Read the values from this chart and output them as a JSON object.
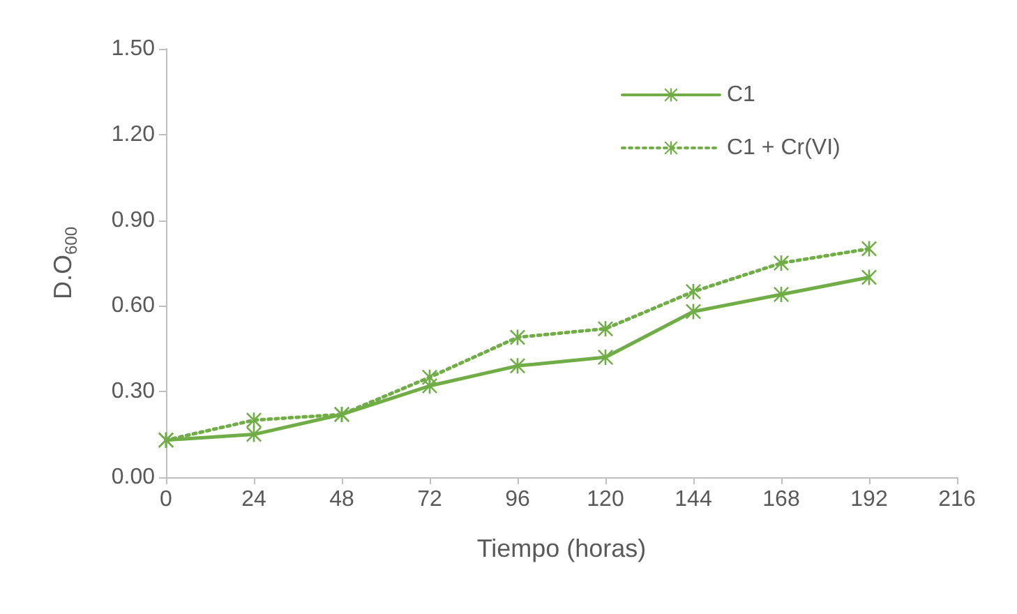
{
  "chart_data": {
    "type": "line",
    "xlabel": "Tiempo (horas)",
    "ylabel": "D.O$_{600}$",
    "x": [
      0,
      24,
      48,
      72,
      96,
      120,
      144,
      168,
      192
    ],
    "series": [
      {
        "name": "C1",
        "color": "#70ad47",
        "line_style": "solid",
        "values": [
          0.13,
          0.15,
          0.22,
          0.32,
          0.39,
          0.42,
          0.58,
          0.64,
          0.7
        ]
      },
      {
        "name": "C1 + Cr(VI)",
        "color": "#70ad47",
        "line_style": "dotted",
        "values": [
          0.13,
          0.2,
          0.22,
          0.35,
          0.49,
          0.52,
          0.65,
          0.75,
          0.8
        ]
      }
    ],
    "xlim": [
      0,
      216
    ],
    "xticks": [
      0,
      24,
      48,
      72,
      96,
      120,
      144,
      168,
      192,
      216
    ],
    "ylim": [
      0,
      1.5
    ],
    "yticks": [
      {
        "value": 0,
        "label": "0.00"
      },
      {
        "value": 0.3,
        "label": "0.30"
      },
      {
        "value": 0.6,
        "label": "0.60"
      },
      {
        "value": 0.9,
        "label": "0.90"
      },
      {
        "value": 1.2,
        "label": "1.20"
      },
      {
        "value": 1.5,
        "label": "1.50"
      }
    ],
    "grid": false,
    "legend": "top right",
    "marker": "cross"
  }
}
